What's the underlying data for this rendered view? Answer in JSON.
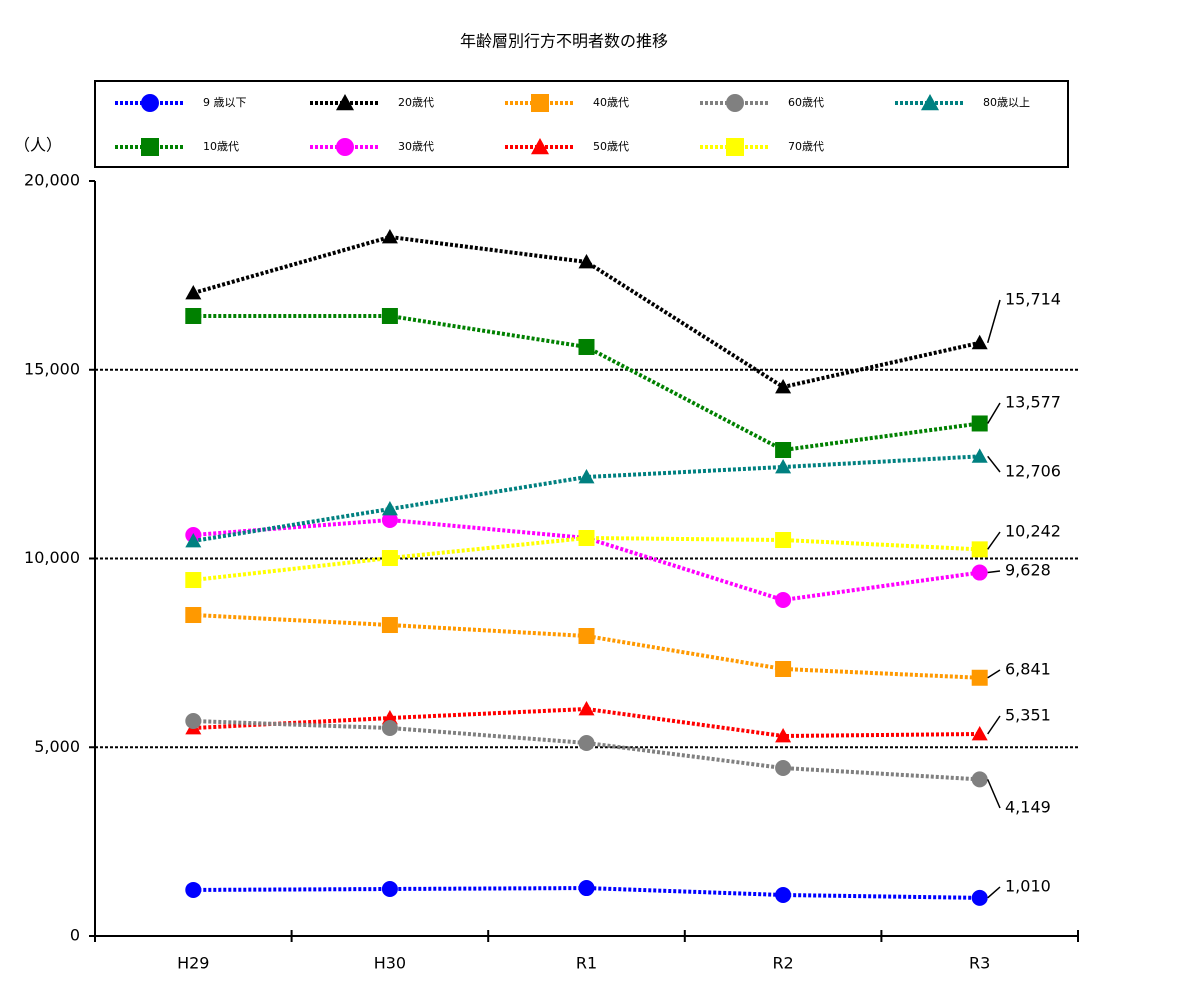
{
  "chart_data": {
    "type": "line",
    "title": "年齢層別行方不明者数の推移",
    "y_label": "（人）",
    "categories": [
      "H29",
      "H30",
      "R1",
      "R2",
      "R3"
    ],
    "ylim": [
      0,
      20000
    ],
    "yticks": [
      0,
      {
        "value": 5000,
        "label": "5,000"
      },
      {
        "value": 10000,
        "label": "10,000"
      },
      {
        "value": 15000,
        "label": "15,000"
      },
      {
        "value": 20000,
        "label": "20,000"
      }
    ],
    "grid": true,
    "series": [
      {
        "name": "9 歳以下",
        "color": "#0000ff",
        "marker": "circle",
        "values": [
          1220,
          1245,
          1270,
          1086,
          1010
        ],
        "value_labels": [
          null,
          null,
          null,
          null,
          "1,010"
        ]
      },
      {
        "name": "10歳代",
        "color": "#008000",
        "marker": "square",
        "values": [
          16424,
          16424,
          15603,
          12874,
          13577
        ],
        "value_labels": [
          null,
          null,
          null,
          null,
          "13,577"
        ]
      },
      {
        "name": "20歳代",
        "color": "#000000",
        "marker": "triangle",
        "values": [
          17033,
          18517,
          17855,
          14543,
          15714
        ],
        "value_labels": [
          null,
          null,
          null,
          null,
          "15,714"
        ]
      },
      {
        "name": "30歳代",
        "color": "#ff00ff",
        "marker": "circle",
        "values": [
          10623,
          11020,
          10543,
          8901,
          9628
        ],
        "value_labels": [
          null,
          null,
          null,
          null,
          "9,628"
        ]
      },
      {
        "name": "40歳代",
        "color": "#ff9900",
        "marker": "square",
        "values": [
          8503,
          8238,
          7947,
          7073,
          6841
        ],
        "value_labels": [
          null,
          null,
          null,
          null,
          "6,841"
        ]
      },
      {
        "name": "50歳代",
        "color": "#ff0000",
        "marker": "triangle",
        "values": [
          5510,
          5775,
          6013,
          5298,
          5351
        ],
        "value_labels": [
          null,
          null,
          null,
          null,
          "5,351"
        ]
      },
      {
        "name": "60歳代",
        "color": "#808080",
        "marker": "circle",
        "values": [
          5695,
          5510,
          5113,
          4450,
          4149
        ],
        "value_labels": [
          null,
          null,
          null,
          null,
          "4,149"
        ]
      },
      {
        "name": "70歳代",
        "color": "#ffff00",
        "marker": "square",
        "values": [
          9430,
          10013,
          10543,
          10490,
          10242
        ],
        "value_labels": [
          null,
          null,
          null,
          null,
          "10,242"
        ]
      },
      {
        "name": "80歳以上",
        "color": "#008080",
        "marker": "triangle",
        "values": [
          10464,
          11311,
          12159,
          12424,
          12706
        ],
        "value_labels": [
          null,
          null,
          null,
          null,
          "12,706"
        ]
      }
    ]
  }
}
